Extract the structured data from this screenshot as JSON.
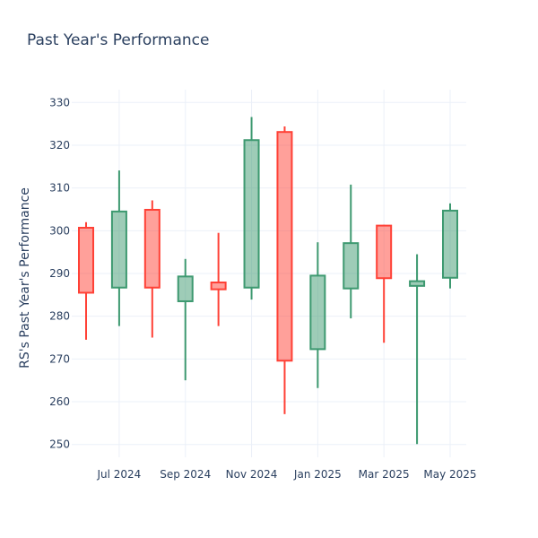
{
  "chart_data": {
    "type": "candlestick",
    "title": "Past Year's Performance",
    "xlabel": "",
    "ylabel": "RS's Past Year's Performance",
    "ylim": [
      247,
      333
    ],
    "yticks": [
      250,
      260,
      270,
      280,
      290,
      300,
      310,
      320,
      330
    ],
    "x_tick_labels": [
      "Jul 2024",
      "Sep 2024",
      "Nov 2024",
      "Jan 2025",
      "Mar 2025",
      "May 2025"
    ],
    "grid": true,
    "colors": {
      "increasing": "#3d9970",
      "decreasing": "#ff4136"
    },
    "candles": [
      {
        "period": "Jun 2024",
        "open": 300.7,
        "high": 302.0,
        "low": 274.5,
        "close": 285.5
      },
      {
        "period": "Jul 2024",
        "open": 286.7,
        "high": 314.1,
        "low": 277.7,
        "close": 304.5
      },
      {
        "period": "Aug 2024",
        "open": 304.9,
        "high": 307.1,
        "low": 275.0,
        "close": 286.7
      },
      {
        "period": "Sep 2024",
        "open": 283.5,
        "high": 293.4,
        "low": 265.0,
        "close": 289.3
      },
      {
        "period": "Oct 2024",
        "open": 287.9,
        "high": 299.5,
        "low": 277.7,
        "close": 286.3
      },
      {
        "period": "Nov 2024",
        "open": 286.7,
        "high": 326.6,
        "low": 283.9,
        "close": 321.2
      },
      {
        "period": "Dec 2024",
        "open": 323.1,
        "high": 324.4,
        "low": 257.1,
        "close": 269.6
      },
      {
        "period": "Jan 2025",
        "open": 272.3,
        "high": 297.3,
        "low": 263.2,
        "close": 289.5
      },
      {
        "period": "Feb 2025",
        "open": 286.5,
        "high": 310.8,
        "low": 279.5,
        "close": 297.1
      },
      {
        "period": "Mar 2025",
        "open": 301.2,
        "high": 301.4,
        "low": 273.8,
        "close": 288.9
      },
      {
        "period": "Apr 2025",
        "open": 287.1,
        "high": 294.5,
        "low": 250.1,
        "close": 288.2
      },
      {
        "period": "May 2025",
        "open": 289.0,
        "high": 306.4,
        "low": 286.5,
        "close": 304.7
      }
    ]
  }
}
